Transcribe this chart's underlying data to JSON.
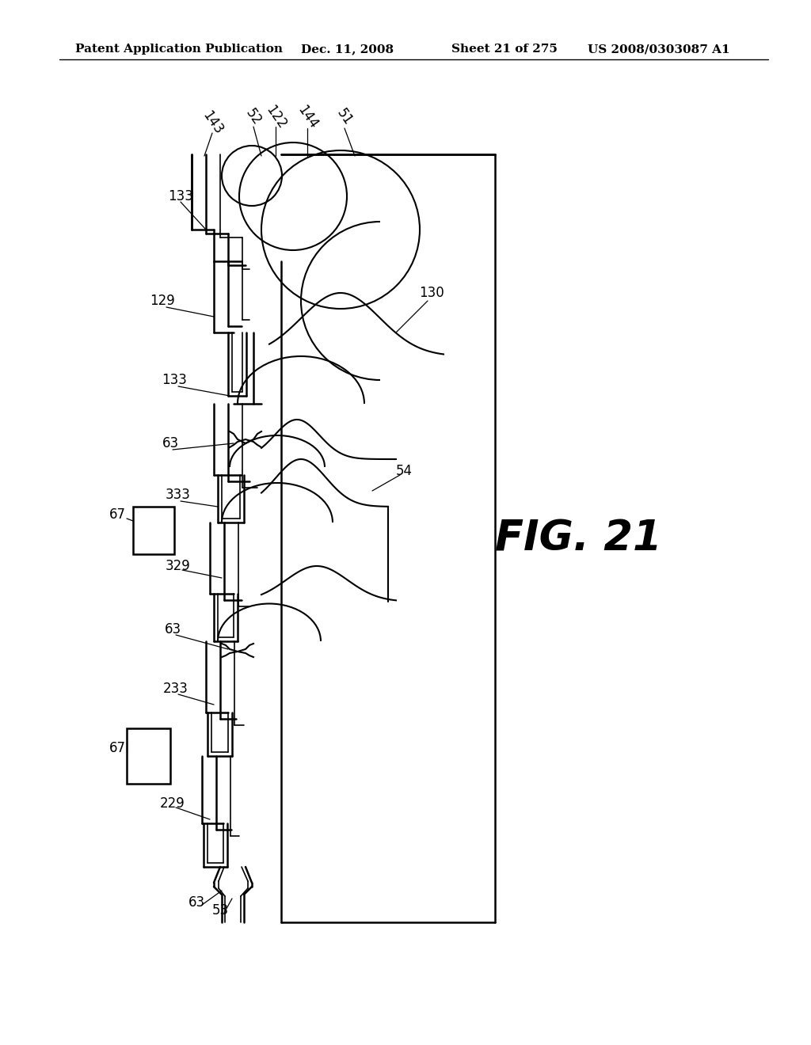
{
  "bg_color": "#ffffff",
  "header_text": "Patent Application Publication",
  "header_date": "Dec. 11, 2008",
  "header_sheet": "Sheet 21 of 275",
  "header_patent": "US 2008/0303087 A1",
  "fig_label": "FIG. 21"
}
